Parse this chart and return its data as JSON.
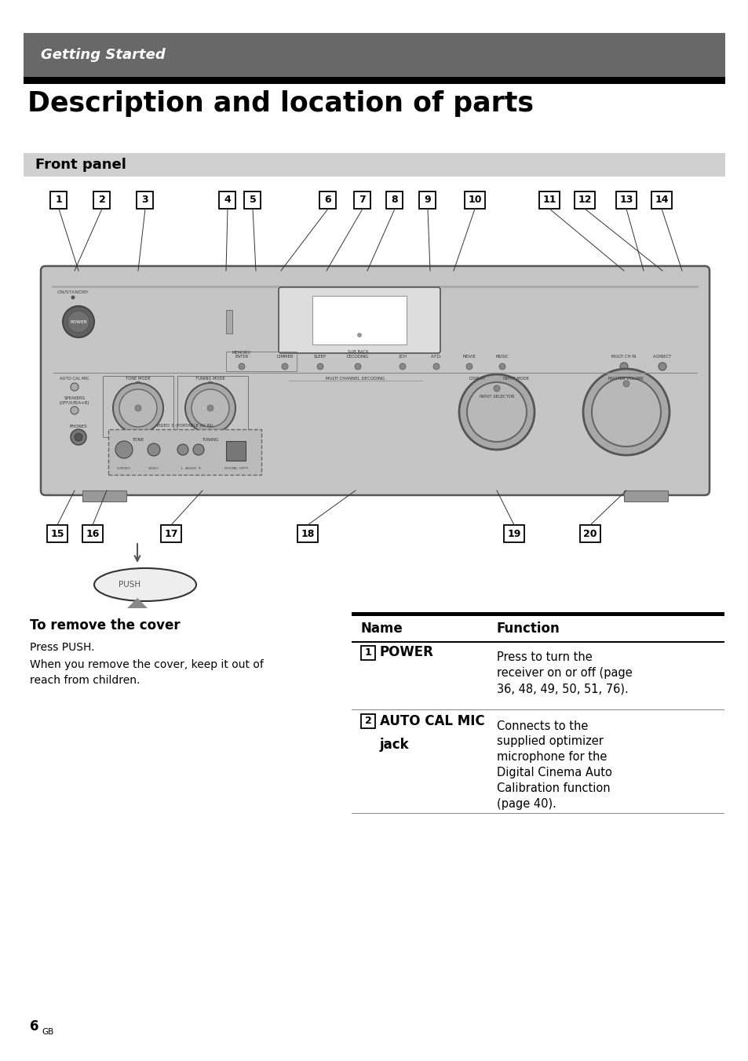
{
  "page_bg": "#ffffff",
  "header_bg": "#686868",
  "header_text": "Getting Started",
  "header_text_color": "#ffffff",
  "black_bar_color": "#000000",
  "title": "Description and location of parts",
  "section_bg": "#d0d0d0",
  "section_text": "Front panel",
  "panel_bg": "#c8c8c8",
  "panel_outline": "#555555",
  "label_nums_top": [
    "1",
    "2",
    "3",
    "4",
    "5",
    "6",
    "7",
    "8",
    "9",
    "10",
    "11",
    "12",
    "13",
    "14"
  ],
  "label_x_top": [
    75,
    130,
    185,
    290,
    322,
    418,
    462,
    503,
    545,
    605,
    700,
    745,
    798,
    843
  ],
  "label_nums_bot": [
    "15",
    "16",
    "17",
    "18",
    "19",
    "20"
  ],
  "label_x_bot": [
    73,
    118,
    218,
    392,
    655,
    752
  ],
  "cover_section_title": "To remove the cover",
  "cover_text_line1": "Press PUSH.",
  "cover_text_line2": "When you remove the cover, keep it out of",
  "cover_text_line3": "reach from children.",
  "table_header_name": "Name",
  "table_header_function": "Function",
  "row1_name_num": "1",
  "row1_name": "POWER",
  "row1_function": "Press to turn the\nreceiver on or off (page\n36, 48, 49, 50, 51, 76).",
  "row2_name_num": "2",
  "row2_function": "Connects to the\nsupplied optimizer\nmicrophone for the\nDigital Cinema Auto\nCalibration function\n(page 40).",
  "page_number": "6",
  "page_suffix": "GB"
}
